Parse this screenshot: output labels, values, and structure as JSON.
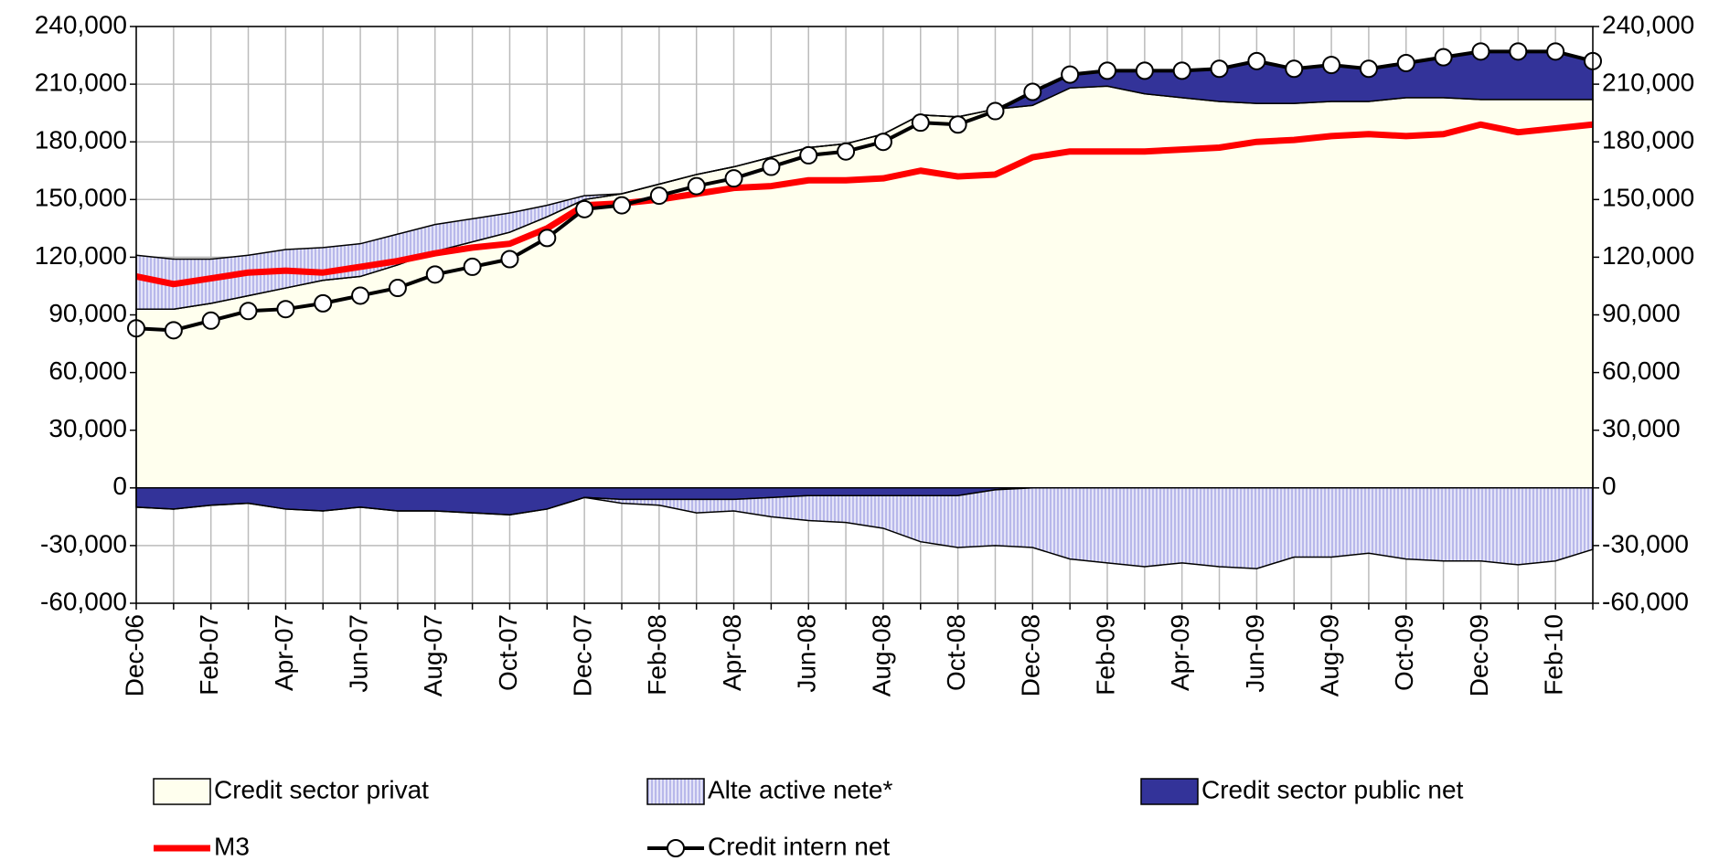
{
  "chart_data": {
    "type": "area",
    "categories": [
      "Dec-06",
      null,
      "Feb-07",
      null,
      "Apr-07",
      null,
      "Jun-07",
      null,
      "Aug-07",
      null,
      "Oct-07",
      null,
      "Dec-07",
      null,
      "Feb-08",
      null,
      "Apr-08",
      null,
      "Jun-08",
      null,
      "Aug-08",
      null,
      "Oct-08",
      null,
      "Dec-08",
      null,
      "Feb-09",
      null,
      "Apr-09",
      null,
      "Jun-09",
      null,
      "Aug-09",
      null,
      "Oct-09",
      null,
      "Dec-09",
      null,
      "Feb-10",
      null
    ],
    "series": [
      {
        "name": "Credit sector privat",
        "color": "#ffffee",
        "values": [
          93000,
          93000,
          96000,
          100000,
          104000,
          108000,
          110000,
          116000,
          123000,
          128000,
          133000,
          141000,
          150000,
          153000,
          158000,
          163000,
          167000,
          172000,
          177000,
          179000,
          184000,
          194000,
          193000,
          197000,
          199000,
          208000,
          209000,
          205000,
          203000,
          201000,
          200000,
          200000,
          201000,
          201000,
          203000,
          203000,
          202000,
          202000,
          202000,
          202000
        ]
      },
      {
        "name": "Alte active nete*",
        "color": "#c8c8f0",
        "values": [
          28000,
          26000,
          23000,
          21000,
          20000,
          17000,
          17000,
          16000,
          14000,
          12000,
          10000,
          6000,
          2000,
          -2000,
          -3000,
          -7000,
          -6000,
          -10000,
          -13000,
          -14000,
          -17000,
          -24000,
          -27000,
          -29000,
          -31000,
          -37000,
          -39000,
          -41000,
          -39000,
          -41000,
          -42000,
          -36000,
          -36000,
          -34000,
          -37000,
          -38000,
          -38000,
          -40000,
          -38000,
          -32000
        ]
      },
      {
        "name": "Credit sector public net",
        "color": "#333399",
        "values": [
          -10000,
          -11000,
          -9000,
          -8000,
          -11000,
          -12000,
          -10000,
          -12000,
          -12000,
          -13000,
          -14000,
          -11000,
          -5000,
          -6000,
          -6000,
          -6000,
          -6000,
          -5000,
          -4000,
          -4000,
          -4000,
          -4000,
          -4000,
          -1000,
          7000,
          7000,
          8000,
          12000,
          14000,
          17000,
          22000,
          18000,
          19000,
          17000,
          18000,
          21000,
          25000,
          25000,
          25000,
          20000
        ]
      },
      {
        "name": "M3",
        "type": "line",
        "color": "#ff0000",
        "values": [
          110000,
          106000,
          109000,
          112000,
          113000,
          112000,
          115000,
          118000,
          122000,
          125000,
          127000,
          135000,
          147000,
          148000,
          150000,
          153000,
          156000,
          157000,
          160000,
          160000,
          161000,
          165000,
          162000,
          163000,
          172000,
          175000,
          175000,
          175000,
          176000,
          177000,
          180000,
          181000,
          183000,
          184000,
          183000,
          184000,
          189000,
          185000,
          187000,
          189000
        ]
      },
      {
        "name": "Credit intern net",
        "type": "line",
        "color": "#000000",
        "values": [
          83000,
          82000,
          87000,
          92000,
          93000,
          96000,
          100000,
          104000,
          111000,
          115000,
          119000,
          130000,
          145000,
          147000,
          152000,
          157000,
          161000,
          167000,
          173000,
          175000,
          180000,
          190000,
          189000,
          196000,
          206000,
          215000,
          217000,
          217000,
          217000,
          218000,
          222000,
          218000,
          220000,
          218000,
          221000,
          224000,
          227000,
          227000,
          227000,
          222000
        ]
      }
    ],
    "ylim": [
      -60000,
      240000
    ],
    "yticks": [
      {
        "value": -60000,
        "label": "-60,000"
      },
      {
        "value": -30000,
        "label": "-30,000"
      },
      0,
      {
        "value": 30000,
        "label": "30,000"
      },
      {
        "value": 60000,
        "label": "60,000"
      },
      {
        "value": 90000,
        "label": "90,000"
      },
      {
        "value": 120000,
        "label": "120,000"
      },
      {
        "value": 150000,
        "label": "150,000"
      },
      {
        "value": 180000,
        "label": "180,000"
      },
      {
        "value": 210000,
        "label": "210,000"
      },
      {
        "value": 240000,
        "label": "240,000"
      }
    ],
    "y2lim": [
      -60000,
      240000
    ],
    "y2ticks": [
      {
        "value": -60000,
        "label": "-60,000"
      },
      {
        "value": -30000,
        "label": "-30,000"
      },
      0,
      {
        "value": 30000,
        "label": "30,000"
      },
      {
        "value": 60000,
        "label": "60,000"
      },
      {
        "value": 90000,
        "label": "90,000"
      },
      {
        "value": 120000,
        "label": "120,000"
      },
      {
        "value": 150000,
        "label": "150,000"
      },
      {
        "value": 180000,
        "label": "180,000"
      },
      {
        "value": 210000,
        "label": "210,000"
      },
      {
        "value": 240000,
        "label": "240,000"
      }
    ],
    "grid": true,
    "legend": "bottom"
  }
}
